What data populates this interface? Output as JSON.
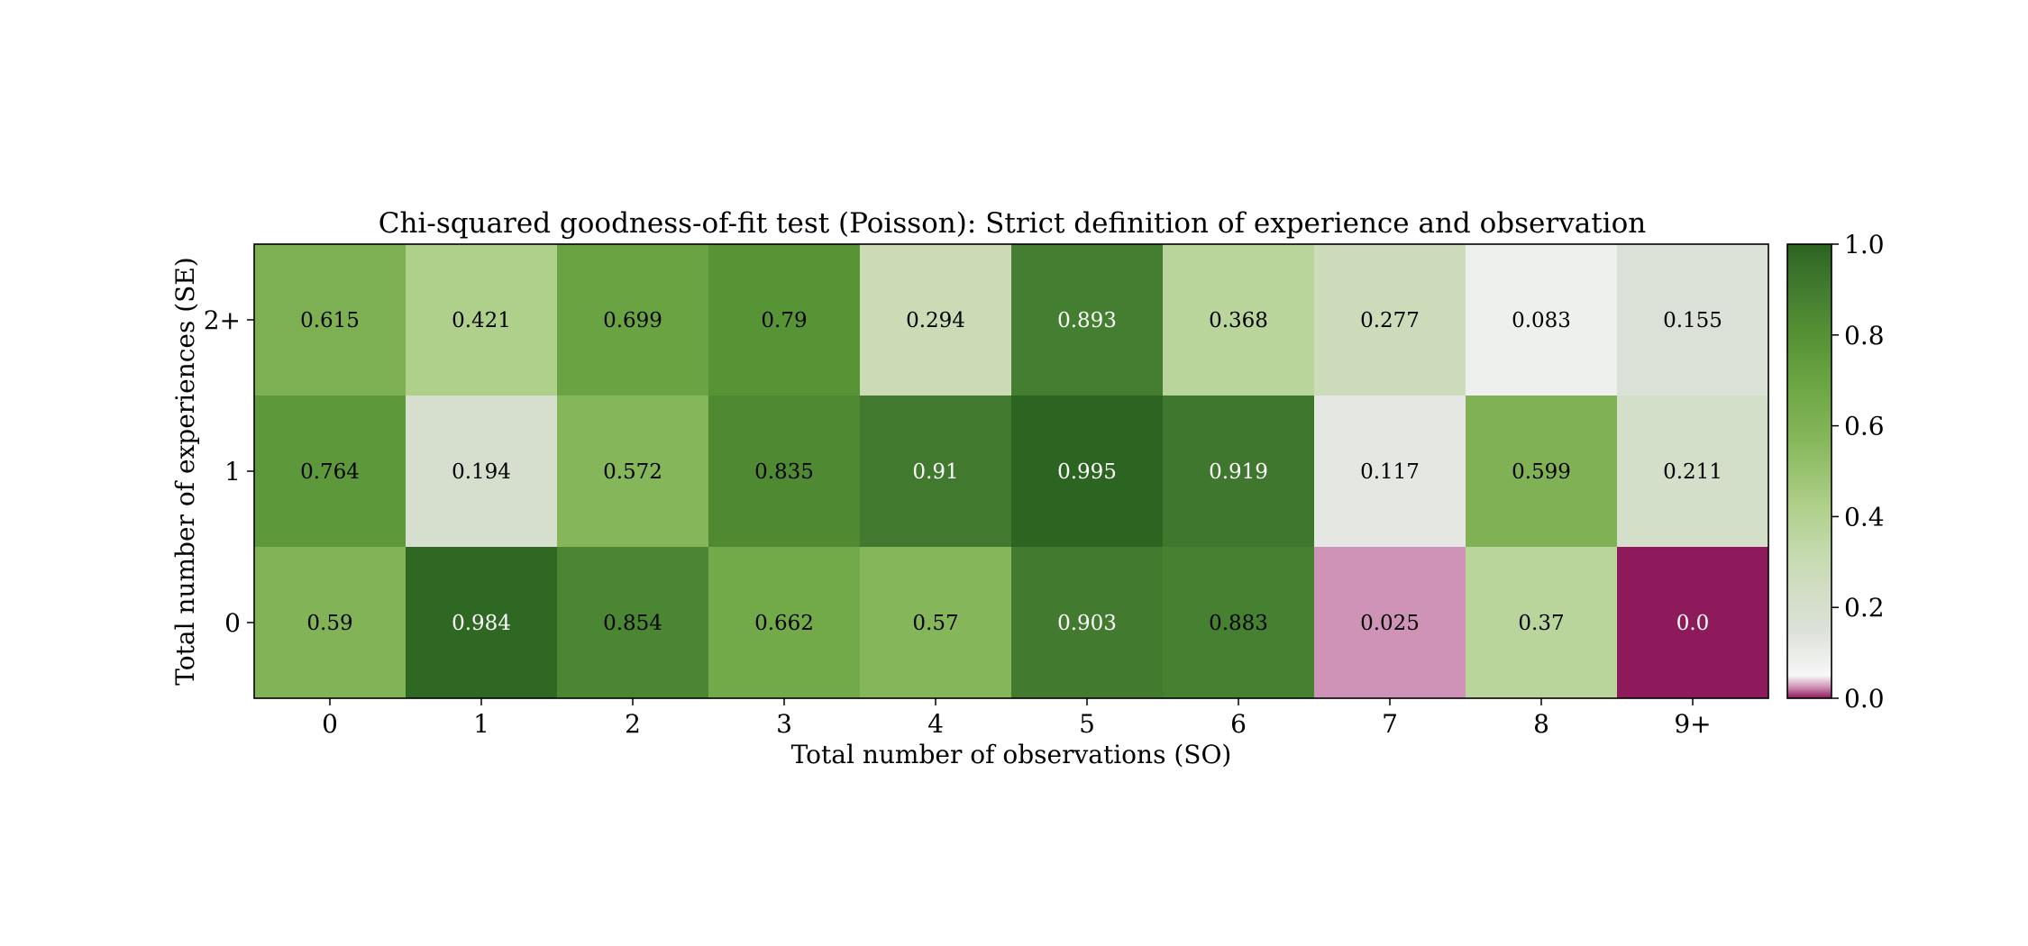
{
  "chart_data": {
    "type": "heatmap",
    "title": "Chi-squared goodness-of-fit test (Poisson): Strict definition of experience and observation",
    "xlabel": "Total number of observations (SO)",
    "ylabel": "Total number of experiences (SE)",
    "x_categories": [
      "0",
      "1",
      "2",
      "3",
      "4",
      "5",
      "6",
      "7",
      "8",
      "9+"
    ],
    "y_categories": [
      "2+",
      "1",
      "0"
    ],
    "values": [
      [
        0.615,
        0.421,
        0.699,
        0.79,
        0.294,
        0.893,
        0.368,
        0.277,
        0.083,
        0.155
      ],
      [
        0.764,
        0.194,
        0.572,
        0.835,
        0.91,
        0.995,
        0.919,
        0.117,
        0.599,
        0.211
      ],
      [
        0.59,
        0.984,
        0.854,
        0.662,
        0.57,
        0.903,
        0.883,
        0.025,
        0.37,
        0.0
      ]
    ],
    "cell_labels": [
      [
        "0.615",
        "0.421",
        "0.699",
        "0.79",
        "0.294",
        "0.893",
        "0.368",
        "0.277",
        "0.083",
        "0.155"
      ],
      [
        "0.764",
        "0.194",
        "0.572",
        "0.835",
        "0.91",
        "0.995",
        "0.919",
        "0.117",
        "0.599",
        "0.211"
      ],
      [
        "0.59",
        "0.984",
        "0.854",
        "0.662",
        "0.57",
        "0.903",
        "0.883",
        "0.025",
        "0.37",
        "0.0"
      ]
    ],
    "colorbar": {
      "range": [
        0.0,
        1.0
      ],
      "ticks": [
        0.0,
        0.2,
        0.4,
        0.6,
        0.8,
        1.0
      ],
      "tick_labels": [
        "0.0",
        "0.2",
        "0.4",
        "0.6",
        "0.8",
        "1.0"
      ]
    },
    "colormap_stops": [
      {
        "v": 0.0,
        "color": "#8e1a5b"
      },
      {
        "v": 0.025,
        "color": "#d093b8"
      },
      {
        "v": 0.05,
        "color": "#f7f7f7"
      },
      {
        "v": 0.15,
        "color": "#dce1d8"
      },
      {
        "v": 0.3,
        "color": "#c9dbb4"
      },
      {
        "v": 0.42,
        "color": "#afd08a"
      },
      {
        "v": 0.57,
        "color": "#86b65a"
      },
      {
        "v": 0.7,
        "color": "#6aa442"
      },
      {
        "v": 0.8,
        "color": "#559235"
      },
      {
        "v": 0.9,
        "color": "#437c30"
      },
      {
        "v": 1.0,
        "color": "#2b6420"
      }
    ],
    "grid": false,
    "legend": "colorbar-right"
  }
}
